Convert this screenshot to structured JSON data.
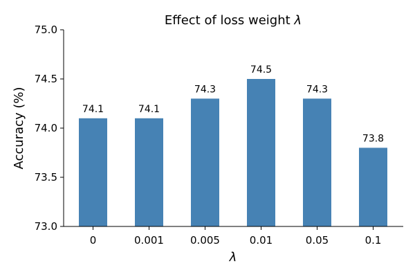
{
  "chart_data": {
    "type": "bar",
    "title": "Effect of loss weight ",
    "title_symbol": "λ",
    "xlabel": "λ",
    "ylabel": "Accuracy (%)",
    "categories": [
      "0",
      "0.001",
      "0.005",
      "0.01",
      "0.05",
      "0.1"
    ],
    "values": [
      74.1,
      74.1,
      74.3,
      74.5,
      74.3,
      73.8
    ],
    "value_labels": [
      "74.1",
      "74.1",
      "74.3",
      "74.5",
      "74.3",
      "73.8"
    ],
    "ylim": [
      73.0,
      75.0
    ],
    "yticks": [
      73.0,
      73.5,
      74.0,
      74.5,
      75.0
    ],
    "ytick_labels": [
      "73.0",
      "73.5",
      "74.0",
      "74.5",
      "75.0"
    ],
    "bar_color": "#4682b4",
    "grid": false,
    "legend": "none"
  }
}
